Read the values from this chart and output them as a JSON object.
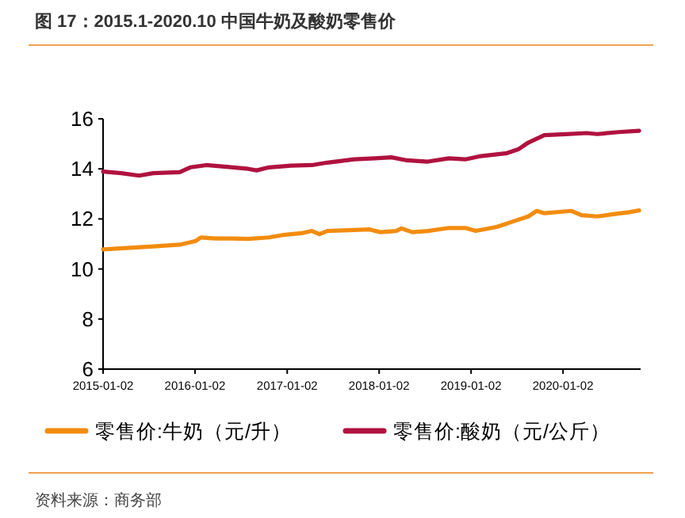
{
  "chart_data": {
    "type": "line",
    "title": "图 17：2015.1-2020.10 中国牛奶及酸奶零售价",
    "annotations": [
      "资料来源：商务部"
    ],
    "xlim": [
      "2015-01-02",
      "2020-11-05"
    ],
    "xticks": [
      {
        "value": "2015-01-02",
        "label": "2015-01-02"
      },
      {
        "value": "2016-01-02",
        "label": "2016-01-02"
      },
      {
        "value": "2017-01-02",
        "label": "2017-01-02"
      },
      {
        "value": "2018-01-02",
        "label": "2018-01-02"
      },
      {
        "value": "2019-01-02",
        "label": "2019-01-02"
      },
      {
        "value": "2020-01-02",
        "label": "2020-01-02"
      }
    ],
    "ylim": [
      6,
      16
    ],
    "yticks": [
      6,
      8,
      10,
      12,
      14,
      16
    ],
    "grid": false,
    "legend": "bottom",
    "marker": "none",
    "line_style": "solid",
    "series": [
      {
        "name": "零售价:牛奶（元/升）",
        "color": "#f28c0f",
        "x": [
          "2015-01-02",
          "2015-04-05",
          "2015-07-20",
          "2015-11-02",
          "2016-01-05",
          "2016-01-25",
          "2016-03-25",
          "2016-05-28",
          "2016-08-01",
          "2016-10-22",
          "2016-12-25",
          "2017-02-28",
          "2017-04-10",
          "2017-05-10",
          "2017-06-10",
          "2017-09-25",
          "2017-11-25",
          "2018-01-08",
          "2018-03-10",
          "2018-04-01",
          "2018-05-14",
          "2018-07-14",
          "2018-10-07",
          "2018-12-10",
          "2019-01-20",
          "2019-04-14",
          "2019-06-15",
          "2019-08-17",
          "2019-09-20",
          "2019-10-20",
          "2020-02-05",
          "2020-03-15",
          "2020-05-17",
          "2020-07-20",
          "2020-09-22",
          "2020-10-30"
        ],
        "values": [
          10.78,
          10.84,
          10.9,
          10.97,
          11.12,
          11.26,
          11.22,
          11.22,
          11.2,
          11.26,
          11.37,
          11.43,
          11.52,
          11.39,
          11.52,
          11.56,
          11.58,
          11.47,
          11.52,
          11.62,
          11.47,
          11.52,
          11.64,
          11.64,
          11.52,
          11.68,
          11.89,
          12.1,
          12.32,
          12.23,
          12.32,
          12.15,
          12.1,
          12.19,
          12.27,
          12.34
        ]
      },
      {
        "name": "零售价:酸奶（元/公斤）",
        "color": "#b0123f",
        "x": [
          "2015-01-02",
          "2015-03-15",
          "2015-05-25",
          "2015-07-20",
          "2015-11-02",
          "2015-12-14",
          "2016-02-15",
          "2016-05-07",
          "2016-08-01",
          "2016-09-02",
          "2016-10-22",
          "2017-01-17",
          "2017-04-10",
          "2017-06-10",
          "2017-09-25",
          "2017-12-17",
          "2018-02-20",
          "2018-04-22",
          "2018-07-14",
          "2018-10-07",
          "2018-12-10",
          "2019-02-10",
          "2019-05-25",
          "2019-07-08",
          "2019-08-17",
          "2019-10-20",
          "2020-01-14",
          "2020-04-05",
          "2020-05-17",
          "2020-08-10",
          "2020-10-30"
        ],
        "values": [
          13.89,
          13.83,
          13.73,
          13.83,
          13.87,
          14.06,
          14.15,
          14.08,
          14.0,
          13.94,
          14.06,
          14.13,
          14.15,
          14.25,
          14.38,
          14.42,
          14.46,
          14.34,
          14.29,
          14.42,
          14.38,
          14.51,
          14.63,
          14.78,
          15.05,
          15.35,
          15.39,
          15.43,
          15.39,
          15.47,
          15.52
        ]
      }
    ]
  }
}
